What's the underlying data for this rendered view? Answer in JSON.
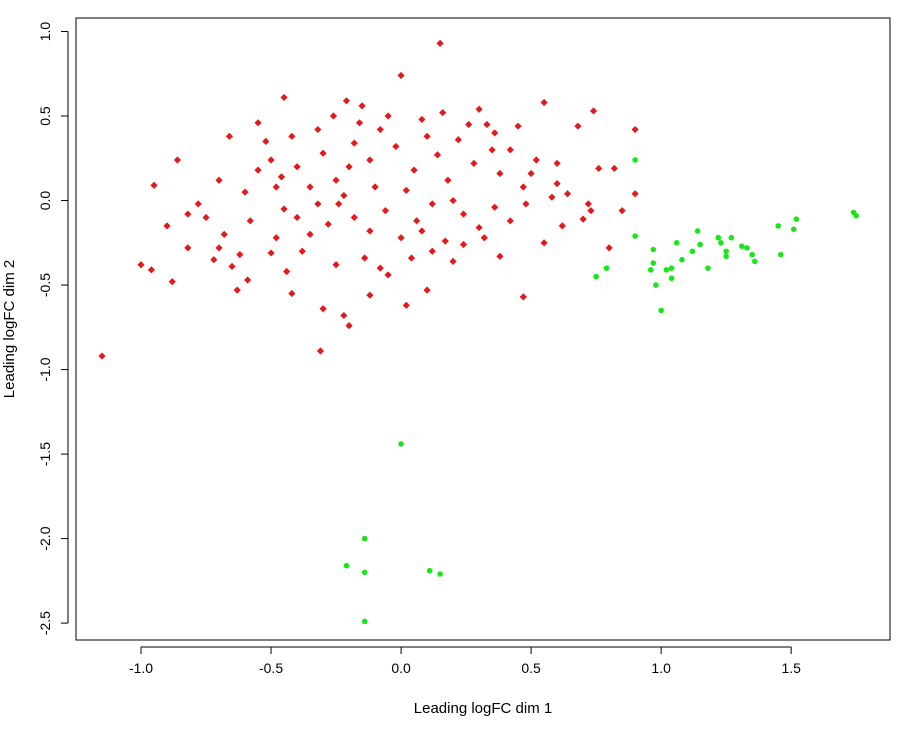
{
  "chart_data": {
    "type": "scatter",
    "title": "",
    "xlabel": "Leading logFC dim 1",
    "ylabel": "Leading logFC dim 2",
    "xlim": [
      -1.25,
      1.88
    ],
    "ylim": [
      -2.6,
      1.08
    ],
    "x_ticks": [
      -1.0,
      -0.5,
      0.0,
      0.5,
      1.0,
      1.5
    ],
    "x_tick_labels": [
      "-1.0",
      "-0.5",
      "0.0",
      "0.5",
      "1.0",
      "1.5"
    ],
    "y_ticks": [
      -2.5,
      -2.0,
      -1.5,
      -1.0,
      -0.5,
      0.0,
      0.5,
      1.0
    ],
    "y_tick_labels": [
      "-2.5",
      "-2.0",
      "-1.5",
      "-1.0",
      "-0.5",
      "0.0",
      "0.5",
      "1.0"
    ],
    "grid": false,
    "legend": "none",
    "series": [
      {
        "color": "#e31a1c",
        "marker": "diamond",
        "points": [
          [
            -1.15,
            -0.92
          ],
          [
            -0.31,
            -0.89
          ],
          [
            0.15,
            0.93
          ],
          [
            0.0,
            0.74
          ],
          [
            -0.45,
            0.61
          ],
          [
            -0.21,
            0.59
          ],
          [
            -0.15,
            0.56
          ],
          [
            0.55,
            0.58
          ],
          [
            0.3,
            0.54
          ],
          [
            0.74,
            0.53
          ],
          [
            0.68,
            0.44
          ],
          [
            0.9,
            0.42
          ],
          [
            -0.55,
            0.46
          ],
          [
            -0.66,
            0.38
          ],
          [
            -0.86,
            0.24
          ],
          [
            -0.95,
            0.09
          ],
          [
            -1.0,
            -0.38
          ],
          [
            -0.96,
            -0.41
          ],
          [
            -0.88,
            -0.48
          ],
          [
            -0.82,
            -0.08
          ],
          [
            -0.75,
            -0.1
          ],
          [
            -0.7,
            -0.28
          ],
          [
            -0.65,
            -0.39
          ],
          [
            -0.63,
            -0.53
          ],
          [
            -0.59,
            -0.47
          ],
          [
            -0.5,
            -0.31
          ],
          [
            -0.44,
            -0.42
          ],
          [
            -0.42,
            -0.55
          ],
          [
            -0.3,
            -0.64
          ],
          [
            -0.22,
            -0.68
          ],
          [
            -0.2,
            -0.74
          ],
          [
            -0.12,
            -0.56
          ],
          [
            -0.05,
            -0.44
          ],
          [
            0.02,
            -0.62
          ],
          [
            0.1,
            -0.53
          ],
          [
            0.2,
            -0.36
          ],
          [
            0.38,
            -0.33
          ],
          [
            0.47,
            -0.57
          ],
          [
            0.55,
            -0.25
          ],
          [
            0.62,
            -0.15
          ],
          [
            0.72,
            -0.02
          ],
          [
            0.8,
            -0.28
          ],
          [
            0.85,
            -0.06
          ],
          [
            0.9,
            0.04
          ],
          [
            0.82,
            0.19
          ],
          [
            0.76,
            0.19
          ],
          [
            0.73,
            -0.06
          ],
          [
            0.7,
            -0.11
          ],
          [
            0.6,
            0.1
          ],
          [
            0.64,
            0.04
          ],
          [
            -0.6,
            0.05
          ],
          [
            -0.55,
            0.18
          ],
          [
            -0.5,
            0.24
          ],
          [
            -0.46,
            0.14
          ],
          [
            -0.4,
            0.2
          ],
          [
            -0.35,
            0.08
          ],
          [
            -0.3,
            0.28
          ],
          [
            -0.25,
            0.12
          ],
          [
            -0.22,
            0.03
          ],
          [
            -0.18,
            0.34
          ],
          [
            -0.12,
            0.24
          ],
          [
            -0.08,
            0.42
          ],
          [
            -0.02,
            0.32
          ],
          [
            0.05,
            0.18
          ],
          [
            0.1,
            0.38
          ],
          [
            0.14,
            0.27
          ],
          [
            0.18,
            0.12
          ],
          [
            0.22,
            0.36
          ],
          [
            0.28,
            0.22
          ],
          [
            0.33,
            0.45
          ],
          [
            0.38,
            0.16
          ],
          [
            0.42,
            0.3
          ],
          [
            0.47,
            0.08
          ],
          [
            0.52,
            0.24
          ],
          [
            0.58,
            0.02
          ],
          [
            -0.45,
            -0.05
          ],
          [
            -0.4,
            -0.1
          ],
          [
            -0.35,
            -0.2
          ],
          [
            -0.28,
            -0.14
          ],
          [
            -0.24,
            -0.02
          ],
          [
            -0.18,
            -0.1
          ],
          [
            -0.12,
            -0.18
          ],
          [
            -0.06,
            -0.06
          ],
          [
            0.0,
            -0.22
          ],
          [
            0.06,
            -0.12
          ],
          [
            0.12,
            -0.02
          ],
          [
            0.17,
            -0.24
          ],
          [
            0.24,
            -0.08
          ],
          [
            0.3,
            -0.16
          ],
          [
            0.36,
            -0.04
          ],
          [
            0.42,
            -0.12
          ],
          [
            0.48,
            -0.02
          ],
          [
            -0.7,
            0.12
          ],
          [
            -0.78,
            -0.02
          ],
          [
            -0.68,
            -0.2
          ],
          [
            -0.58,
            -0.12
          ],
          [
            -0.52,
            0.35
          ],
          [
            -0.42,
            0.38
          ],
          [
            -0.32,
            0.42
          ],
          [
            -0.26,
            0.5
          ],
          [
            -0.16,
            0.46
          ],
          [
            -0.05,
            0.5
          ],
          [
            0.08,
            0.48
          ],
          [
            0.16,
            0.52
          ],
          [
            0.26,
            0.45
          ],
          [
            0.36,
            0.4
          ],
          [
            0.45,
            0.44
          ],
          [
            -0.62,
            -0.32
          ],
          [
            -0.48,
            -0.22
          ],
          [
            -0.38,
            -0.3
          ],
          [
            -0.25,
            -0.38
          ],
          [
            -0.14,
            -0.34
          ],
          [
            -0.08,
            -0.4
          ],
          [
            0.04,
            -0.34
          ],
          [
            0.12,
            -0.3
          ],
          [
            0.24,
            -0.26
          ],
          [
            0.32,
            -0.22
          ],
          [
            -0.1,
            0.08
          ],
          [
            0.02,
            0.06
          ],
          [
            -0.2,
            0.2
          ],
          [
            0.2,
            0.0
          ],
          [
            0.35,
            0.3
          ],
          [
            -0.32,
            -0.02
          ],
          [
            0.08,
            -0.18
          ],
          [
            -0.48,
            0.08
          ],
          [
            0.5,
            0.16
          ],
          [
            0.6,
            0.22
          ],
          [
            -0.82,
            -0.28
          ],
          [
            -0.9,
            -0.15
          ],
          [
            -0.72,
            -0.35
          ]
        ]
      },
      {
        "color": "#19e619",
        "marker": "circle",
        "points": [
          [
            0.0,
            -1.44
          ],
          [
            -0.14,
            -2.0
          ],
          [
            -0.21,
            -2.16
          ],
          [
            -0.14,
            -2.2
          ],
          [
            0.11,
            -2.19
          ],
          [
            0.15,
            -2.21
          ],
          [
            -0.14,
            -2.49
          ],
          [
            0.75,
            -0.45
          ],
          [
            0.79,
            -0.4
          ],
          [
            0.9,
            0.24
          ],
          [
            0.9,
            -0.21
          ],
          [
            0.97,
            -0.29
          ],
          [
            0.97,
            -0.37
          ],
          [
            0.96,
            -0.41
          ],
          [
            0.98,
            -0.5
          ],
          [
            1.0,
            -0.65
          ],
          [
            1.02,
            -0.41
          ],
          [
            1.04,
            -0.4
          ],
          [
            1.04,
            -0.46
          ],
          [
            1.06,
            -0.25
          ],
          [
            1.08,
            -0.35
          ],
          [
            1.12,
            -0.3
          ],
          [
            1.14,
            -0.18
          ],
          [
            1.15,
            -0.26
          ],
          [
            1.18,
            -0.4
          ],
          [
            1.22,
            -0.22
          ],
          [
            1.23,
            -0.25
          ],
          [
            1.25,
            -0.3
          ],
          [
            1.25,
            -0.33
          ],
          [
            1.27,
            -0.22
          ],
          [
            1.31,
            -0.27
          ],
          [
            1.33,
            -0.28
          ],
          [
            1.35,
            -0.32
          ],
          [
            1.36,
            -0.36
          ],
          [
            1.45,
            -0.15
          ],
          [
            1.46,
            -0.32
          ],
          [
            1.51,
            -0.17
          ],
          [
            1.52,
            -0.11
          ],
          [
            1.74,
            -0.07
          ],
          [
            1.75,
            -0.09
          ]
        ]
      }
    ]
  }
}
